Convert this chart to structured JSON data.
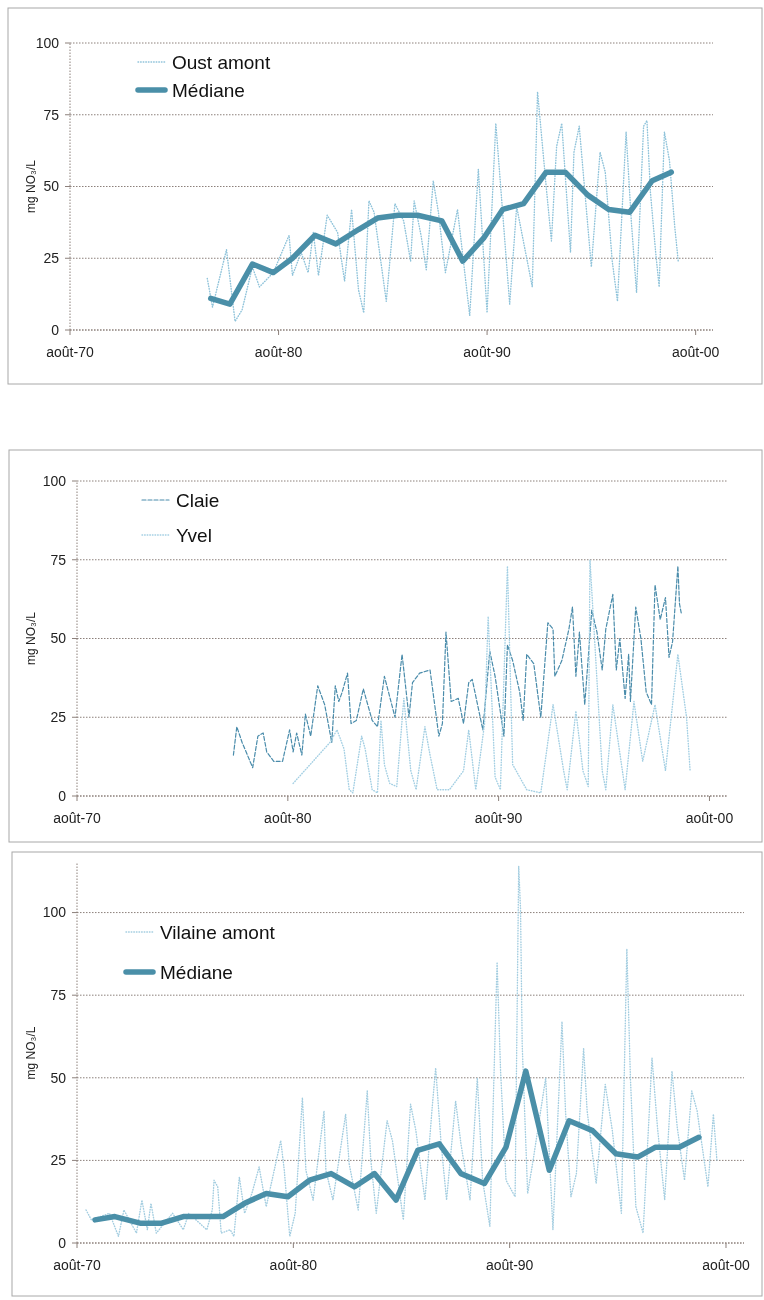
{
  "chart_data": [
    {
      "type": "line",
      "ylabel": "mg NO₃/L",
      "xlim": [
        "1970-08",
        "2001-06"
      ],
      "xticks": [
        {
          "value": "1970-08",
          "label": "août-70"
        },
        {
          "value": "1980-08",
          "label": "août-80"
        },
        {
          "value": "1990-08",
          "label": "août-90"
        },
        {
          "value": "2000-08",
          "label": "août-00"
        }
      ],
      "ylim": [
        0,
        100
      ],
      "yticks": [
        0,
        25,
        50,
        75,
        100
      ],
      "grid": "y",
      "legend": "top left",
      "series": [
        {
          "name": "Oust amont",
          "color": "#8fc3da",
          "line_style": "dotted",
          "x": [
            "1977-03",
            "1977-06",
            "1978-02",
            "1978-07",
            "1978-11",
            "1979-05",
            "1979-09",
            "1980-05",
            "1981-02",
            "1981-04",
            "1981-09",
            "1982-01",
            "1982-04",
            "1982-07",
            "1982-12",
            "1983-06",
            "1983-10",
            "1984-02",
            "1984-06",
            "1984-09",
            "1984-12",
            "1985-03",
            "1985-10",
            "1986-03",
            "1986-08",
            "1986-12",
            "1987-02",
            "1987-06",
            "1987-09",
            "1988-01",
            "1988-04",
            "1988-08",
            "1989-03",
            "1989-10",
            "1990-03",
            "1990-08",
            "1991-01",
            "1991-09",
            "1992-01",
            "1992-10",
            "1993-01",
            "1993-06",
            "1993-09",
            "1993-12",
            "1994-03",
            "1994-08",
            "1994-10",
            "1995-01",
            "1995-08",
            "1996-01",
            "1996-04",
            "1996-08",
            "1996-11",
            "1997-04",
            "1997-07",
            "1997-10",
            "1998-02",
            "1998-04",
            "1998-06",
            "1998-09",
            "1998-11",
            "1999-02",
            "1999-05",
            "1999-08",
            "1999-10"
          ],
          "values": [
            18,
            8,
            28,
            3,
            7,
            22,
            15,
            20,
            33,
            19,
            27,
            20,
            34,
            19,
            40,
            34,
            17,
            42,
            14,
            6,
            45,
            41,
            10,
            44,
            38,
            24,
            45,
            33,
            21,
            52,
            41,
            20,
            42,
            5,
            56,
            6,
            72,
            9,
            43,
            15,
            83,
            50,
            31,
            64,
            72,
            27,
            62,
            71,
            22,
            62,
            55,
            24,
            10,
            69,
            38,
            13,
            71,
            73,
            48,
            27,
            15,
            69,
            59,
            36,
            24
          ]
        },
        {
          "name": "Médiane",
          "color": "#4a8fa8",
          "line_style": "solid",
          "x": [
            "1977-05",
            "1978-04",
            "1979-05",
            "1980-05",
            "1981-04",
            "1982-05",
            "1983-05",
            "1984-06",
            "1985-05",
            "1986-05",
            "1987-04",
            "1988-06",
            "1989-06",
            "1990-06",
            "1991-05",
            "1992-05",
            "1993-06",
            "1994-05",
            "1995-06",
            "1996-06",
            "1997-06",
            "1998-07",
            "1999-06"
          ],
          "values": [
            11,
            9,
            23,
            20,
            25,
            33,
            30,
            35,
            39,
            40,
            40,
            38,
            24,
            32,
            42,
            44,
            55,
            55,
            47,
            42,
            41,
            52,
            55
          ]
        }
      ]
    },
    {
      "type": "line",
      "ylabel": "mg NO₃/L",
      "xlim": [
        "1970-08",
        "2001-06"
      ],
      "xticks": [
        {
          "value": "1970-08",
          "label": "août-70"
        },
        {
          "value": "1980-08",
          "label": "août-80"
        },
        {
          "value": "1990-08",
          "label": "août-90"
        },
        {
          "value": "2000-08",
          "label": "août-00"
        }
      ],
      "ylim": [
        0,
        100
      ],
      "yticks": [
        0,
        25,
        50,
        75,
        100
      ],
      "grid": "y",
      "legend": "top left",
      "series": [
        {
          "name": "Claie",
          "color": "#4a8cab",
          "line_style": "dashed",
          "x": [
            "1978-01",
            "1978-03",
            "1978-06",
            "1978-12",
            "1979-03",
            "1979-06",
            "1979-08",
            "1979-12",
            "1980-05",
            "1980-09",
            "1980-11",
            "1981-01",
            "1981-04",
            "1981-06",
            "1981-09",
            "1982-01",
            "1982-05",
            "1982-09",
            "1982-11",
            "1983-01",
            "1983-03",
            "1983-06",
            "1983-08",
            "1983-11",
            "1984-03",
            "1984-08",
            "1984-11",
            "1985-03",
            "1985-09",
            "1986-01",
            "1986-05",
            "1986-07",
            "1986-11",
            "1987-05",
            "1987-10",
            "1987-12",
            "1988-02",
            "1988-05",
            "1988-09",
            "1988-12",
            "1989-03",
            "1989-05",
            "1989-08",
            "1989-11",
            "1990-03",
            "1990-06",
            "1990-11",
            "1991-01",
            "1991-04",
            "1991-08",
            "1991-10",
            "1991-12",
            "1992-04",
            "1992-08",
            "1992-12",
            "1993-03",
            "1993-04",
            "1993-08",
            "1993-12",
            "1994-02",
            "1994-04",
            "1994-06",
            "1994-09",
            "1995-01",
            "1995-04",
            "1995-07",
            "1995-09",
            "1996-01",
            "1996-03",
            "1996-05",
            "1996-08",
            "1996-10",
            "1996-11",
            "1997-02",
            "1997-05",
            "1997-08",
            "1997-11",
            "1998-01",
            "1998-04",
            "1998-07",
            "1998-09",
            "1998-11",
            "1999-02",
            "1999-03",
            "1999-04"
          ],
          "values": [
            13,
            22,
            17,
            9,
            19,
            20,
            14,
            11,
            11,
            21,
            14,
            20,
            13,
            26,
            19,
            35,
            29,
            17,
            35,
            30,
            33,
            39,
            23,
            24,
            34,
            24,
            22,
            38,
            25,
            45,
            25,
            36,
            39,
            40,
            19,
            23,
            52,
            30,
            31,
            23,
            36,
            37,
            29,
            21,
            46,
            38,
            19,
            48,
            43,
            33,
            24,
            45,
            42,
            25,
            55,
            53,
            38,
            43,
            53,
            60,
            38,
            52,
            29,
            59,
            52,
            40,
            53,
            64,
            40,
            50,
            31,
            45,
            30,
            60,
            50,
            33,
            29,
            67,
            56,
            63,
            44,
            49,
            73,
            61,
            58
          ]
        },
        {
          "name": "Yvel",
          "color": "#a3cfe3",
          "line_style": "dotted",
          "x": [
            "1980-11",
            "1982-08",
            "1982-12",
            "1983-04",
            "1983-07",
            "1983-09",
            "1984-02",
            "1984-04",
            "1984-08",
            "1984-11",
            "1985-01",
            "1985-03",
            "1985-06",
            "1985-10",
            "1986-02",
            "1986-06",
            "1986-09",
            "1987-02",
            "1987-05",
            "1987-09",
            "1988-04",
            "1988-12",
            "1989-03",
            "1989-07",
            "1989-12",
            "1990-02",
            "1990-06",
            "1990-09",
            "1991-01",
            "1991-04",
            "1991-12",
            "1992-08",
            "1993-03",
            "1993-09",
            "1993-11",
            "1994-04",
            "1994-08",
            "1994-11",
            "1994-12",
            "1995-07",
            "1995-09",
            "1996-01",
            "1996-08",
            "1997-01",
            "1997-06",
            "1998-01",
            "1998-07",
            "1999-02",
            "1999-07",
            "1999-09"
          ],
          "values": [
            4,
            17,
            21,
            15,
            2,
            1,
            19,
            15,
            2,
            1,
            24,
            10,
            4,
            3,
            31,
            8,
            2,
            22,
            13,
            2,
            2,
            8,
            21,
            2,
            23,
            57,
            6,
            2,
            73,
            10,
            2,
            1,
            29,
            8,
            2,
            27,
            8,
            3,
            75,
            8,
            2,
            29,
            2,
            30,
            11,
            29,
            8,
            45,
            25,
            8
          ]
        }
      ]
    },
    {
      "type": "line",
      "ylabel": "mg NO₃/L",
      "xlim": [
        "1970-08",
        "2001-06"
      ],
      "xticks": [
        {
          "value": "1970-08",
          "label": "août-70"
        },
        {
          "value": "1980-08",
          "label": "août-80"
        },
        {
          "value": "1990-08",
          "label": "août-90"
        },
        {
          "value": "2000-08",
          "label": "août-00"
        }
      ],
      "ylim": [
        0,
        115
      ],
      "yticks": [
        0,
        25,
        50,
        75,
        100
      ],
      "grid": "y",
      "legend": "top left",
      "series": [
        {
          "name": "Vilaine amont",
          "color": "#a3cde0",
          "line_style": "dotted",
          "x": [
            "1971-01",
            "1971-04",
            "1972-02",
            "1972-07",
            "1972-10",
            "1973-05",
            "1973-08",
            "1973-11",
            "1974-01",
            "1974-04",
            "1975-01",
            "1975-07",
            "1975-10",
            "1976-08",
            "1976-11",
            "1976-12",
            "1977-02",
            "1977-04",
            "1977-09",
            "1977-11",
            "1978-02",
            "1978-05",
            "1978-09",
            "1979-01",
            "1979-05",
            "1980-01",
            "1980-03",
            "1980-06",
            "1980-09",
            "1981-01",
            "1981-03",
            "1981-07",
            "1982-01",
            "1982-02",
            "1982-06",
            "1983-01",
            "1983-03",
            "1983-08",
            "1984-01",
            "1984-03",
            "1984-06",
            "1984-12",
            "1985-03",
            "1985-09",
            "1986-01",
            "1986-04",
            "1986-09",
            "1987-01",
            "1987-03",
            "1987-06",
            "1987-09",
            "1988-02",
            "1988-05",
            "1988-10",
            "1989-02",
            "1989-05",
            "1989-09",
            "1990-01",
            "1990-03",
            "1990-06",
            "1990-11",
            "1991-01",
            "1991-02",
            "1991-03",
            "1991-06",
            "1991-09",
            "1992-04",
            "1992-08",
            "1993-01",
            "1993-03",
            "1993-06",
            "1993-09",
            "1994-01",
            "1994-03",
            "1994-08",
            "1995-01",
            "1995-05",
            "1995-10",
            "1996-01",
            "1996-03",
            "1996-06",
            "1996-10",
            "1997-03",
            "1997-06",
            "1997-10",
            "1998-02",
            "1998-05",
            "1998-09",
            "1999-01",
            "1999-04",
            "1999-10",
            "2000-01",
            "2000-03"
          ],
          "values": [
            10,
            7,
            9,
            2,
            10,
            3,
            13,
            4,
            12,
            3,
            9,
            4,
            9,
            4,
            10,
            19,
            17,
            3,
            4,
            2,
            20,
            9,
            15,
            23,
            11,
            31,
            22,
            2,
            9,
            44,
            22,
            13,
            40,
            22,
            13,
            39,
            24,
            10,
            46,
            25,
            9,
            37,
            31,
            7,
            42,
            34,
            13,
            41,
            53,
            30,
            13,
            43,
            30,
            13,
            50,
            19,
            5,
            85,
            52,
            19,
            14,
            114,
            101,
            60,
            15,
            25,
            50,
            4,
            67,
            40,
            14,
            21,
            59,
            40,
            18,
            48,
            34,
            9,
            89,
            50,
            11,
            3,
            56,
            35,
            13,
            52,
            35,
            19,
            46,
            40,
            17,
            39,
            25
          ]
        },
        {
          "name": "Médiane",
          "color": "#4a8fa8",
          "line_style": "solid",
          "x": [
            "1971-06",
            "1972-05",
            "1973-07",
            "1974-07",
            "1975-07",
            "1976-06",
            "1977-05",
            "1978-05",
            "1979-05",
            "1980-05",
            "1981-05",
            "1982-05",
            "1983-06",
            "1984-05",
            "1985-05",
            "1986-05",
            "1987-05",
            "1988-05",
            "1989-06",
            "1990-06",
            "1991-05",
            "1992-06",
            "1993-05",
            "1994-06",
            "1995-07",
            "1996-07",
            "1997-05",
            "1998-06",
            "1999-05"
          ],
          "values": [
            7,
            8,
            6,
            6,
            8,
            8,
            8,
            12,
            15,
            14,
            19,
            21,
            17,
            21,
            13,
            28,
            30,
            21,
            18,
            29,
            52,
            22,
            37,
            34,
            27,
            26,
            29,
            29,
            32
          ]
        }
      ]
    }
  ]
}
